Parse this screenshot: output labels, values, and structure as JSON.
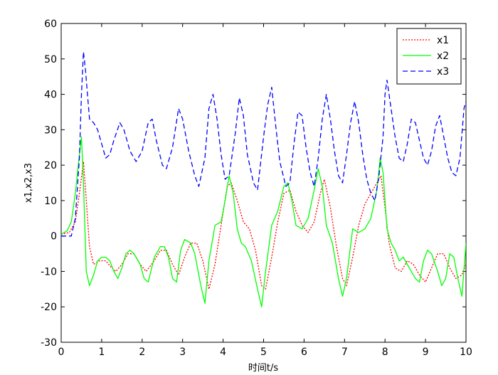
{
  "chart_data": {
    "type": "line",
    "xlabel": "时间t/s",
    "ylabel": "x1,x2,x3",
    "xlim": [
      0,
      10
    ],
    "ylim": [
      -30,
      60
    ],
    "xticks": [
      0,
      1,
      2,
      3,
      4,
      5,
      6,
      7,
      8,
      9,
      10
    ],
    "yticks": [
      -30,
      -20,
      -10,
      0,
      10,
      20,
      30,
      40,
      50,
      60
    ],
    "grid": false,
    "legend_position": "top-right",
    "series": [
      {
        "name": "x1",
        "color": "#ff0000",
        "style": "dotted",
        "points": [
          [
            0,
            0.5
          ],
          [
            0.2,
            1
          ],
          [
            0.35,
            4
          ],
          [
            0.45,
            12
          ],
          [
            0.55,
            21
          ],
          [
            0.62,
            10
          ],
          [
            0.7,
            -3
          ],
          [
            0.8,
            -8
          ],
          [
            0.95,
            -7
          ],
          [
            1.1,
            -7
          ],
          [
            1.25,
            -9
          ],
          [
            1.35,
            -10
          ],
          [
            1.5,
            -8
          ],
          [
            1.65,
            -5
          ],
          [
            1.8,
            -5
          ],
          [
            1.95,
            -8
          ],
          [
            2.1,
            -10
          ],
          [
            2.3,
            -7
          ],
          [
            2.45,
            -4
          ],
          [
            2.6,
            -4
          ],
          [
            2.75,
            -8
          ],
          [
            2.9,
            -11
          ],
          [
            3.05,
            -6
          ],
          [
            3.2,
            -2
          ],
          [
            3.35,
            -2
          ],
          [
            3.5,
            -7
          ],
          [
            3.65,
            -15
          ],
          [
            3.8,
            -8
          ],
          [
            3.95,
            3
          ],
          [
            4.1,
            14
          ],
          [
            4.2,
            15
          ],
          [
            4.35,
            10
          ],
          [
            4.5,
            4
          ],
          [
            4.65,
            2
          ],
          [
            4.8,
            -4
          ],
          [
            4.95,
            -14
          ],
          [
            5.05,
            -15
          ],
          [
            5.2,
            -6
          ],
          [
            5.35,
            4
          ],
          [
            5.5,
            12
          ],
          [
            5.65,
            13
          ],
          [
            5.8,
            7
          ],
          [
            5.95,
            3
          ],
          [
            6.1,
            1
          ],
          [
            6.25,
            4
          ],
          [
            6.4,
            12
          ],
          [
            6.5,
            16
          ],
          [
            6.65,
            8
          ],
          [
            6.8,
            -3
          ],
          [
            6.95,
            -12
          ],
          [
            7.05,
            -14
          ],
          [
            7.2,
            -6
          ],
          [
            7.35,
            3
          ],
          [
            7.5,
            9
          ],
          [
            7.65,
            12
          ],
          [
            7.8,
            15
          ],
          [
            7.9,
            17
          ],
          [
            8.0,
            8
          ],
          [
            8.1,
            -2
          ],
          [
            8.25,
            -9
          ],
          [
            8.4,
            -10
          ],
          [
            8.55,
            -7
          ],
          [
            8.7,
            -8
          ],
          [
            8.85,
            -11
          ],
          [
            9.0,
            -13
          ],
          [
            9.15,
            -9
          ],
          [
            9.3,
            -5
          ],
          [
            9.45,
            -5
          ],
          [
            9.6,
            -9
          ],
          [
            9.75,
            -12
          ],
          [
            9.9,
            -11
          ],
          [
            10,
            -8
          ]
        ]
      },
      {
        "name": "x2",
        "color": "#00ff00",
        "style": "solid",
        "points": [
          [
            0,
            0.5
          ],
          [
            0.15,
            1.5
          ],
          [
            0.25,
            4
          ],
          [
            0.35,
            12
          ],
          [
            0.45,
            23
          ],
          [
            0.5,
            28
          ],
          [
            0.55,
            15
          ],
          [
            0.62,
            -10
          ],
          [
            0.7,
            -14
          ],
          [
            0.8,
            -11
          ],
          [
            0.9,
            -7
          ],
          [
            1.0,
            -6
          ],
          [
            1.1,
            -6
          ],
          [
            1.2,
            -7
          ],
          [
            1.3,
            -10
          ],
          [
            1.4,
            -12
          ],
          [
            1.5,
            -9
          ],
          [
            1.6,
            -5
          ],
          [
            1.7,
            -4
          ],
          [
            1.8,
            -5
          ],
          [
            1.95,
            -8
          ],
          [
            2.05,
            -12
          ],
          [
            2.15,
            -13
          ],
          [
            2.3,
            -6
          ],
          [
            2.45,
            -3
          ],
          [
            2.55,
            -3
          ],
          [
            2.65,
            -6
          ],
          [
            2.75,
            -12
          ],
          [
            2.85,
            -13
          ],
          [
            2.95,
            -4
          ],
          [
            3.05,
            -1
          ],
          [
            3.2,
            -2
          ],
          [
            3.3,
            -5
          ],
          [
            3.45,
            -14
          ],
          [
            3.55,
            -19
          ],
          [
            3.65,
            -7
          ],
          [
            3.8,
            3
          ],
          [
            3.95,
            4
          ],
          [
            4.05,
            10
          ],
          [
            4.15,
            17
          ],
          [
            4.25,
            12
          ],
          [
            4.35,
            2
          ],
          [
            4.45,
            -2
          ],
          [
            4.55,
            -3
          ],
          [
            4.7,
            -7
          ],
          [
            4.85,
            -15
          ],
          [
            4.95,
            -20
          ],
          [
            5.05,
            -10
          ],
          [
            5.2,
            3
          ],
          [
            5.35,
            7
          ],
          [
            5.5,
            14
          ],
          [
            5.6,
            15
          ],
          [
            5.7,
            10
          ],
          [
            5.8,
            3
          ],
          [
            5.95,
            2
          ],
          [
            6.1,
            5
          ],
          [
            6.25,
            13
          ],
          [
            6.35,
            19
          ],
          [
            6.45,
            14
          ],
          [
            6.55,
            3
          ],
          [
            6.7,
            -2
          ],
          [
            6.85,
            -12
          ],
          [
            6.95,
            -17
          ],
          [
            7.05,
            -12
          ],
          [
            7.2,
            2
          ],
          [
            7.35,
            1
          ],
          [
            7.5,
            2
          ],
          [
            7.65,
            5
          ],
          [
            7.8,
            13
          ],
          [
            7.88,
            22
          ],
          [
            7.95,
            18
          ],
          [
            8.05,
            2
          ],
          [
            8.15,
            -2
          ],
          [
            8.25,
            -4
          ],
          [
            8.35,
            -7
          ],
          [
            8.45,
            -6
          ],
          [
            8.6,
            -9
          ],
          [
            8.75,
            -12
          ],
          [
            8.85,
            -13
          ],
          [
            8.95,
            -7
          ],
          [
            9.05,
            -4
          ],
          [
            9.15,
            -5
          ],
          [
            9.3,
            -10
          ],
          [
            9.4,
            -14
          ],
          [
            9.5,
            -12
          ],
          [
            9.6,
            -5
          ],
          [
            9.7,
            -6
          ],
          [
            9.8,
            -12
          ],
          [
            9.9,
            -17
          ],
          [
            10,
            -2
          ]
        ]
      },
      {
        "name": "x3",
        "color": "#0000ff",
        "style": "dashed",
        "points": [
          [
            0,
            0
          ],
          [
            0.25,
            0
          ],
          [
            0.35,
            5
          ],
          [
            0.45,
            22
          ],
          [
            0.5,
            40
          ],
          [
            0.55,
            52
          ],
          [
            0.6,
            47
          ],
          [
            0.7,
            33
          ],
          [
            0.8,
            32
          ],
          [
            0.9,
            30
          ],
          [
            1.0,
            26
          ],
          [
            1.1,
            22
          ],
          [
            1.2,
            23
          ],
          [
            1.3,
            27
          ],
          [
            1.45,
            32
          ],
          [
            1.55,
            30
          ],
          [
            1.7,
            24
          ],
          [
            1.85,
            21
          ],
          [
            2.0,
            24
          ],
          [
            2.15,
            32
          ],
          [
            2.25,
            33
          ],
          [
            2.35,
            27
          ],
          [
            2.5,
            20
          ],
          [
            2.6,
            19
          ],
          [
            2.75,
            25
          ],
          [
            2.9,
            36
          ],
          [
            3.0,
            33
          ],
          [
            3.15,
            24
          ],
          [
            3.3,
            17
          ],
          [
            3.4,
            14
          ],
          [
            3.55,
            22
          ],
          [
            3.65,
            36
          ],
          [
            3.75,
            40
          ],
          [
            3.85,
            33
          ],
          [
            3.95,
            23
          ],
          [
            4.05,
            16
          ],
          [
            4.15,
            17
          ],
          [
            4.3,
            29
          ],
          [
            4.4,
            39
          ],
          [
            4.5,
            34
          ],
          [
            4.6,
            23
          ],
          [
            4.75,
            15
          ],
          [
            4.85,
            13
          ],
          [
            5.0,
            28
          ],
          [
            5.1,
            37
          ],
          [
            5.2,
            42
          ],
          [
            5.3,
            31
          ],
          [
            5.4,
            21
          ],
          [
            5.55,
            14
          ],
          [
            5.65,
            15
          ],
          [
            5.75,
            26
          ],
          [
            5.85,
            35
          ],
          [
            5.95,
            34
          ],
          [
            6.05,
            25
          ],
          [
            6.15,
            18
          ],
          [
            6.25,
            14
          ],
          [
            6.35,
            22
          ],
          [
            6.45,
            33
          ],
          [
            6.55,
            40
          ],
          [
            6.65,
            33
          ],
          [
            6.75,
            24
          ],
          [
            6.85,
            17
          ],
          [
            6.95,
            15
          ],
          [
            7.05,
            23
          ],
          [
            7.15,
            32
          ],
          [
            7.25,
            38
          ],
          [
            7.35,
            32
          ],
          [
            7.45,
            23
          ],
          [
            7.55,
            16
          ],
          [
            7.65,
            12
          ],
          [
            7.75,
            10
          ],
          [
            7.85,
            17
          ],
          [
            7.95,
            28
          ],
          [
            8.0,
            40
          ],
          [
            8.05,
            44
          ],
          [
            8.15,
            36
          ],
          [
            8.25,
            28
          ],
          [
            8.35,
            22
          ],
          [
            8.45,
            21
          ],
          [
            8.55,
            26
          ],
          [
            8.65,
            33
          ],
          [
            8.75,
            32
          ],
          [
            8.85,
            27
          ],
          [
            8.95,
            22
          ],
          [
            9.05,
            20
          ],
          [
            9.15,
            24
          ],
          [
            9.25,
            31
          ],
          [
            9.35,
            34
          ],
          [
            9.45,
            28
          ],
          [
            9.55,
            22
          ],
          [
            9.65,
            18
          ],
          [
            9.75,
            17
          ],
          [
            9.85,
            22
          ],
          [
            9.95,
            36
          ],
          [
            10,
            38
          ]
        ]
      }
    ]
  }
}
